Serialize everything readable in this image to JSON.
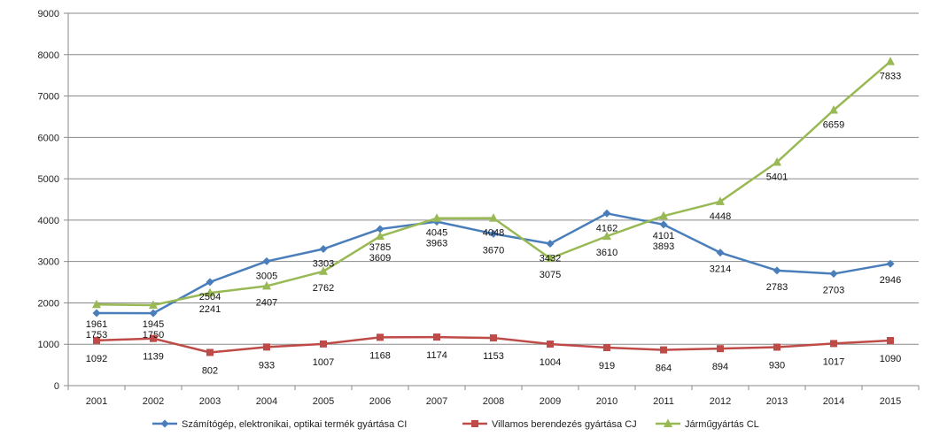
{
  "chart_data": {
    "type": "line",
    "title": "",
    "xlabel": "",
    "ylabel": "",
    "ylim": [
      0,
      9000
    ],
    "yticks": [
      0,
      1000,
      2000,
      3000,
      4000,
      5000,
      6000,
      7000,
      8000,
      9000
    ],
    "grid": true,
    "legend_position": "bottom",
    "categories": [
      "2001",
      "2002",
      "2003",
      "2004",
      "2005",
      "2006",
      "2007",
      "2008",
      "2009",
      "2010",
      "2011",
      "2012",
      "2013",
      "2014",
      "2015"
    ],
    "series": [
      {
        "name": "Számítógép, elektronikai, optikai termék gyártása   CI",
        "color": "#4a7ebb",
        "marker": "diamond",
        "values": [
          1753,
          1750,
          2504,
          3005,
          3303,
          3785,
          3963,
          3670,
          3432,
          4162,
          3893,
          3214,
          2783,
          2703,
          2946
        ]
      },
      {
        "name": "Villamos berendezés gyártása CJ",
        "color": "#be4b48",
        "marker": "square",
        "values": [
          1092,
          1139,
          802,
          933,
          1007,
          1168,
          1174,
          1153,
          1004,
          919,
          864,
          894,
          930,
          1017,
          1090
        ]
      },
      {
        "name": "Járműgyártás CL",
        "color": "#98b954",
        "marker": "triangle",
        "values": [
          1961,
          1945,
          2241,
          2407,
          2762,
          3609,
          4045,
          4048,
          3075,
          3610,
          4101,
          4448,
          5401,
          6659,
          7833
        ]
      }
    ]
  }
}
